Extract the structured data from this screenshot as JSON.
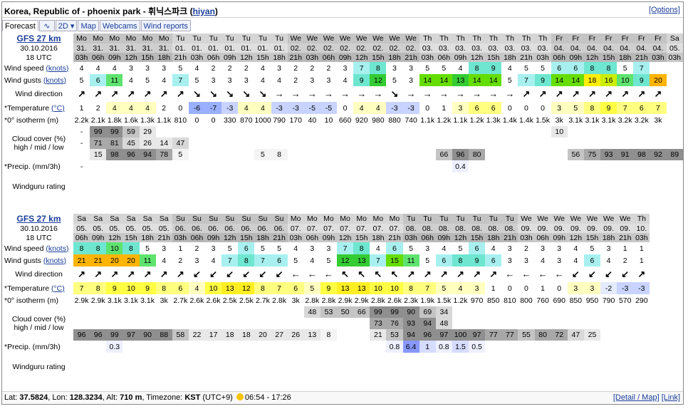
{
  "title": {
    "text": "Korea, Republic of - phoenix park - 휘닉스파크",
    "link": "hiyan"
  },
  "options_label": "[Options]",
  "tabs": [
    {
      "label": "Forecast",
      "active": true
    },
    {
      "label": "∿",
      "icon": "wave-chart-icon"
    },
    {
      "label": "2D ▾"
    },
    {
      "label": "Map"
    },
    {
      "label": "Webcams"
    },
    {
      "label": "Wind reports"
    }
  ],
  "model": {
    "name": "GFS 27 km",
    "date": "30.10.2016",
    "run": "18 UTC"
  },
  "labels": {
    "wind_speed": "Wind speed",
    "wind_gusts": "Wind gusts",
    "knots": "(knots)",
    "wind_direction": "Wind direction",
    "temperature": "*Temperature",
    "celsius": "(°C)",
    "isotherm": "*0° isotherm (m)",
    "cloud": "Cloud cover (%)",
    "cloud2": "high / mid / low",
    "precip": "*Precip. (mm/3h)",
    "rating": "Windguru rating"
  },
  "blocks": [
    {
      "days": [
        "Mo",
        "Mo",
        "Mo",
        "Mo",
        "Mo",
        "Mo",
        "Tu",
        "Tu",
        "Tu",
        "Tu",
        "Tu",
        "Tu",
        "Tu",
        "We",
        "We",
        "We",
        "We",
        "We",
        "We",
        "We",
        "We",
        "Th",
        "Th",
        "Th",
        "Th",
        "Th",
        "Th",
        "Th",
        "Th",
        "Fr",
        "Fr",
        "Fr",
        "Fr",
        "Fr",
        "Fr",
        "Fr",
        "Sa"
      ],
      "dates": [
        "31.",
        "31.",
        "31.",
        "31.",
        "31.",
        "31.",
        "01.",
        "01.",
        "01.",
        "01.",
        "01.",
        "01.",
        "01.",
        "02.",
        "02.",
        "02.",
        "02.",
        "02.",
        "02.",
        "02.",
        "02.",
        "03.",
        "03.",
        "03.",
        "03.",
        "03.",
        "03.",
        "03.",
        "03.",
        "04.",
        "04.",
        "04.",
        "04.",
        "04.",
        "04.",
        "04.",
        "05."
      ],
      "hours": [
        "03h",
        "06h",
        "09h",
        "12h",
        "15h",
        "18h",
        "21h",
        "03h",
        "06h",
        "09h",
        "12h",
        "15h",
        "18h",
        "21h",
        "03h",
        "06h",
        "09h",
        "12h",
        "15h",
        "18h",
        "21h",
        "03h",
        "06h",
        "09h",
        "12h",
        "15h",
        "18h",
        "21h",
        "03h",
        "06h",
        "09h",
        "12h",
        "15h",
        "18h",
        "21h",
        "03h",
        "03h"
      ],
      "wind_speed": [
        "4",
        "4",
        "4",
        "3",
        "3",
        "3",
        "5",
        "4",
        "2",
        "2",
        "2",
        "4",
        "3",
        "2",
        "2",
        "2",
        "3",
        "7",
        "8",
        "3",
        "3",
        "5",
        "5",
        "4",
        "8",
        "9",
        "4",
        "5",
        "5",
        "6",
        "6",
        "8",
        "8",
        "5",
        "7",
        "",
        ""
      ],
      "wind_gusts": [
        "5",
        "6",
        "11",
        "4",
        "5",
        "4",
        "7",
        "5",
        "3",
        "3",
        "3",
        "4",
        "4",
        "2",
        "3",
        "3",
        "4",
        "9",
        "12",
        "5",
        "3",
        "14",
        "14",
        "13",
        "14",
        "14",
        "5",
        "7",
        "9",
        "14",
        "14",
        "18",
        "16",
        "10",
        "9",
        "20",
        ""
      ],
      "wind_dir": [
        "↗",
        "↗",
        "↗",
        "↗",
        "↗",
        "↗",
        "↗",
        "↘",
        "↘",
        "↘",
        "↘",
        "↘",
        "→",
        "→",
        "→",
        "→",
        "→",
        "→",
        "→",
        "↘",
        "→",
        "→",
        "→",
        "→",
        "→",
        "→",
        "→",
        "↗",
        "↗",
        "↗",
        "↗",
        "↗",
        "↗",
        "↗",
        "↗",
        "↗",
        ""
      ],
      "temperature": [
        "1",
        "2",
        "4",
        "4",
        "4",
        "2",
        "0",
        "-6",
        "-7",
        "-3",
        "4",
        "4",
        "-3",
        "-3",
        "-5",
        "-5",
        "0",
        "4",
        "4",
        "-3",
        "-3",
        "0",
        "1",
        "3",
        "6",
        "6",
        "0",
        "0",
        "0",
        "3",
        "5",
        "8",
        "9",
        "7",
        "6",
        "7",
        ""
      ],
      "isotherm": [
        "2.2k",
        "2.1k",
        "1.8k",
        "1.6k",
        "1.3k",
        "1.1k",
        "810",
        "0",
        "0",
        "330",
        "870",
        "1000",
        "790",
        "170",
        "40",
        "10",
        "660",
        "920",
        "980",
        "880",
        "740",
        "1.1k",
        "1.2k",
        "1.1k",
        "1.2k",
        "1.3k",
        "1.4k",
        "1.4k",
        "1.5k",
        "3k",
        "3.1k",
        "3.1k",
        "3.1k",
        "3.2k",
        "3.2k",
        "3k",
        ""
      ],
      "cloud_high": [
        "-",
        "99",
        "99",
        "59",
        "29",
        "",
        "",
        "",
        "",
        "",
        "",
        "",
        "",
        "",
        "",
        "",
        "",
        "",
        "",
        "",
        "",
        "",
        "",
        "",
        "",
        "",
        "",
        "",
        "",
        "10",
        "",
        "",
        "",
        "",
        "",
        "",
        ""
      ],
      "cloud_mid": [
        "-",
        "71",
        "81",
        "45",
        "26",
        "14",
        "47",
        "",
        "",
        "",
        "",
        "",
        "",
        "",
        "",
        "",
        "",
        "",
        "",
        "",
        "",
        "",
        "",
        "",
        "",
        "",
        "",
        "",
        "",
        "",
        "",
        "",
        "",
        "",
        "",
        "",
        ""
      ],
      "cloud_low": [
        "",
        "15",
        "98",
        "96",
        "94",
        "78",
        "5",
        "",
        "",
        "",
        "",
        "5",
        "8",
        "",
        "",
        "",
        "",
        "",
        "",
        "",
        "",
        "",
        "66",
        "96",
        "80",
        "",
        "",
        "",
        "",
        "",
        "56",
        "75",
        "93",
        "91",
        "98",
        "92",
        "89"
      ],
      "precip": [
        "-",
        "",
        "",
        "",
        "",
        "",
        "",
        "",
        "",
        "",
        "",
        "",
        "",
        "",
        "",
        "",
        "",
        "",
        "",
        "",
        "",
        "",
        "",
        "0.4",
        "",
        "",
        "",
        "",
        "",
        "",
        "",
        "",
        "",
        "",
        "",
        "",
        ""
      ]
    },
    {
      "days": [
        "Sa",
        "Sa",
        "Sa",
        "Sa",
        "Sa",
        "Sa",
        "Su",
        "Su",
        "Su",
        "Su",
        "Su",
        "Su",
        "Su",
        "Mo",
        "Mo",
        "Mo",
        "Mo",
        "Mo",
        "Mo",
        "Mo",
        "Tu",
        "Tu",
        "Tu",
        "Tu",
        "Tu",
        "Tu",
        "Tu",
        "We",
        "We",
        "We",
        "We",
        "We",
        "We",
        "We",
        "Th",
        "",
        ""
      ],
      "dates": [
        "05.",
        "05.",
        "05.",
        "05.",
        "05.",
        "05.",
        "06.",
        "06.",
        "06.",
        "06.",
        "06.",
        "06.",
        "06.",
        "07.",
        "07.",
        "07.",
        "07.",
        "07.",
        "07.",
        "07.",
        "08.",
        "08.",
        "08.",
        "08.",
        "08.",
        "08.",
        "08.",
        "09.",
        "09.",
        "09.",
        "09.",
        "09.",
        "09.",
        "09.",
        "10.",
        "",
        ""
      ],
      "hours": [
        "06h",
        "09h",
        "12h",
        "15h",
        "18h",
        "21h",
        "03h",
        "06h",
        "09h",
        "12h",
        "15h",
        "18h",
        "21h",
        "03h",
        "06h",
        "09h",
        "12h",
        "15h",
        "18h",
        "21h",
        "03h",
        "06h",
        "09h",
        "12h",
        "15h",
        "18h",
        "21h",
        "03h",
        "06h",
        "09h",
        "12h",
        "15h",
        "18h",
        "21h",
        "03h",
        "",
        ""
      ],
      "wind_speed": [
        "8",
        "8",
        "10",
        "8",
        "5",
        "3",
        "1",
        "2",
        "3",
        "5",
        "6",
        "5",
        "5",
        "4",
        "3",
        "3",
        "7",
        "8",
        "4",
        "6",
        "5",
        "3",
        "4",
        "5",
        "6",
        "4",
        "3",
        "2",
        "3",
        "3",
        "4",
        "5",
        "3",
        "1",
        "1",
        "",
        ""
      ],
      "wind_gusts": [
        "21",
        "21",
        "20",
        "20",
        "11",
        "4",
        "2",
        "3",
        "4",
        "7",
        "8",
        "7",
        "6",
        "5",
        "4",
        "5",
        "12",
        "13",
        "7",
        "15",
        "11",
        "5",
        "6",
        "8",
        "9",
        "6",
        "3",
        "3",
        "4",
        "3",
        "4",
        "6",
        "4",
        "2",
        "1",
        "",
        ""
      ],
      "wind_dir": [
        "↗",
        "↗",
        "↗",
        "↗",
        "↗",
        "↗",
        "↗",
        "↙",
        "↙",
        "↙",
        "↙",
        "↙",
        "↙",
        "←",
        "←",
        "←",
        "↖",
        "↖",
        "↖",
        "↖",
        "↗",
        "↗",
        "↗",
        "↗",
        "↗",
        "↗",
        "←",
        "←",
        "←",
        "←",
        "↙",
        "↙",
        "↙",
        "↙",
        "↗",
        "",
        ""
      ],
      "temperature": [
        "7",
        "8",
        "9",
        "10",
        "9",
        "8",
        "6",
        "4",
        "10",
        "13",
        "12",
        "8",
        "7",
        "6",
        "5",
        "9",
        "13",
        "13",
        "10",
        "10",
        "8",
        "7",
        "5",
        "4",
        "3",
        "1",
        "0",
        "0",
        "1",
        "0",
        "3",
        "3",
        "-2",
        "-3",
        "-3",
        "",
        ""
      ],
      "isotherm": [
        "2.9k",
        "2.9k",
        "3.1k",
        "3.1k",
        "3.1k",
        "3k",
        "2.7k",
        "2.6k",
        "2.6k",
        "2.5k",
        "2.5k",
        "2.7k",
        "2.8k",
        "3k",
        "2.8k",
        "2.8k",
        "2.9k",
        "2.9k",
        "2.8k",
        "2.6k",
        "2.3k",
        "1.9k",
        "1.5k",
        "1.2k",
        "970",
        "850",
        "810",
        "800",
        "760",
        "690",
        "850",
        "950",
        "790",
        "570",
        "290",
        "",
        ""
      ],
      "cloud_high": [
        "",
        "",
        "",
        "",
        "",
        "",
        "",
        "",
        "",
        "",
        "",
        "",
        "",
        "",
        "48",
        "53",
        "50",
        "66",
        "99",
        "99",
        "90",
        "69",
        "34",
        "",
        "",
        "",
        "",
        "",
        "",
        "",
        "",
        "",
        "",
        "",
        "",
        "",
        ""
      ],
      "cloud_mid": [
        "",
        "",
        "",
        "",
        "",
        "",
        "",
        "",
        "",
        "",
        "",
        "",
        "",
        "",
        "",
        "",
        "",
        "",
        "73",
        "76",
        "93",
        "94",
        "48",
        "",
        "",
        "",
        "",
        "",
        "",
        "",
        "",
        "",
        "",
        "",
        "",
        "",
        ""
      ],
      "cloud_low": [
        "96",
        "96",
        "99",
        "97",
        "90",
        "88",
        "58",
        "22",
        "17",
        "18",
        "18",
        "20",
        "27",
        "26",
        "13",
        "8",
        "",
        "",
        "21",
        "53",
        "94",
        "96",
        "97",
        "100",
        "97",
        "77",
        "77",
        "55",
        "80",
        "72",
        "47",
        "25",
        "",
        "",
        "",
        "",
        ""
      ],
      "precip": [
        "",
        "",
        "0.3",
        "",
        "",
        "",
        "",
        "",
        "",
        "",
        "",
        "",
        "",
        "",
        "",
        "",
        "",
        "",
        "",
        "0.8",
        "6.4",
        "1",
        "0.8",
        "1.5",
        "0.5",
        "",
        "",
        "",
        "",
        "",
        "",
        "",
        "",
        "",
        "",
        "",
        ""
      ]
    }
  ],
  "footer": {
    "lat_label": "Lat:",
    "lat": "37.5824",
    "lon_label": "Lon:",
    "lon": "128.3234",
    "alt_label": "Alt:",
    "alt": "710 m",
    "tz_label": "Timezone:",
    "tz": "KST",
    "tz_offset": "(UTC+9)",
    "sun": "06:54 - 17:26",
    "detail_link": "[Detail / Map]",
    "link_label": "[Link]"
  },
  "colors": {
    "link": "#1a3d9a",
    "header_gray": "#d5d5d5"
  }
}
